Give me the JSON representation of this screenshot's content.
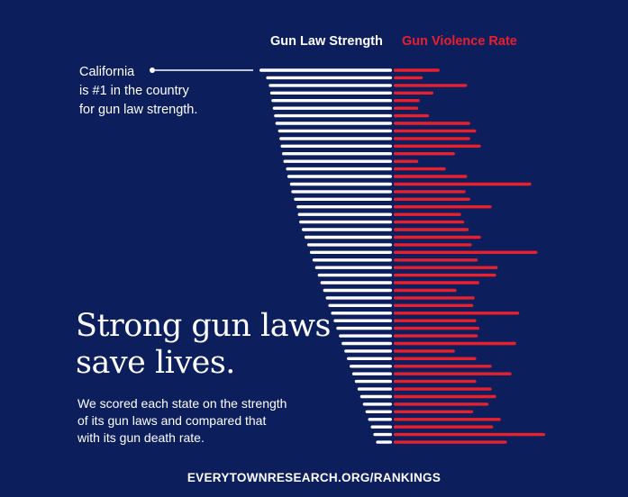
{
  "legend": {
    "left_label": "Gun Law Strength",
    "right_label": "Gun Violence Rate"
  },
  "callout": {
    "line1": "California",
    "line2": "is #1 in the country",
    "line3": "for gun law strength."
  },
  "headline": {
    "line1": "Strong gun laws",
    "line2": "save lives."
  },
  "description": {
    "line1": "We scored each state on the strength",
    "line2": "of its gun laws and compared that",
    "line3": "with its gun death rate."
  },
  "footer": {
    "url": "EVERYTOWNRESEARCH.ORG/RANKINGS"
  },
  "colors": {
    "background": "#0c1f5c",
    "strength_bar": "#ffffff",
    "violence_bar": "#e8202e"
  },
  "chart_data": {
    "type": "bar",
    "title": "",
    "series": [
      {
        "name": "Gun Law Strength",
        "values": [
          100,
          95,
          93,
          92,
          91,
          90,
          89,
          88,
          86,
          85,
          84,
          83,
          82,
          80,
          79,
          77,
          76,
          74,
          72,
          71,
          70,
          68,
          66,
          64,
          62,
          60,
          58,
          56,
          54,
          52,
          50,
          48,
          46,
          44,
          42,
          40,
          38,
          36,
          34,
          32,
          30,
          28,
          26,
          24,
          22,
          20,
          18,
          16,
          14,
          12
        ]
      },
      {
        "name": "Gun Violence Rate",
        "values": [
          30,
          19,
          48,
          26,
          17,
          16,
          23,
          50,
          54,
          50,
          57,
          40,
          16,
          34,
          48,
          90,
          47,
          50,
          64,
          44,
          46,
          49,
          57,
          51,
          94,
          55,
          68,
          67,
          56,
          41,
          53,
          52,
          82,
          54,
          56,
          55,
          80,
          40,
          54,
          64,
          77,
          54,
          64,
          67,
          62,
          52,
          70,
          65,
          99,
          74
        ]
      }
    ],
    "xlabel": "",
    "ylabel": ""
  }
}
